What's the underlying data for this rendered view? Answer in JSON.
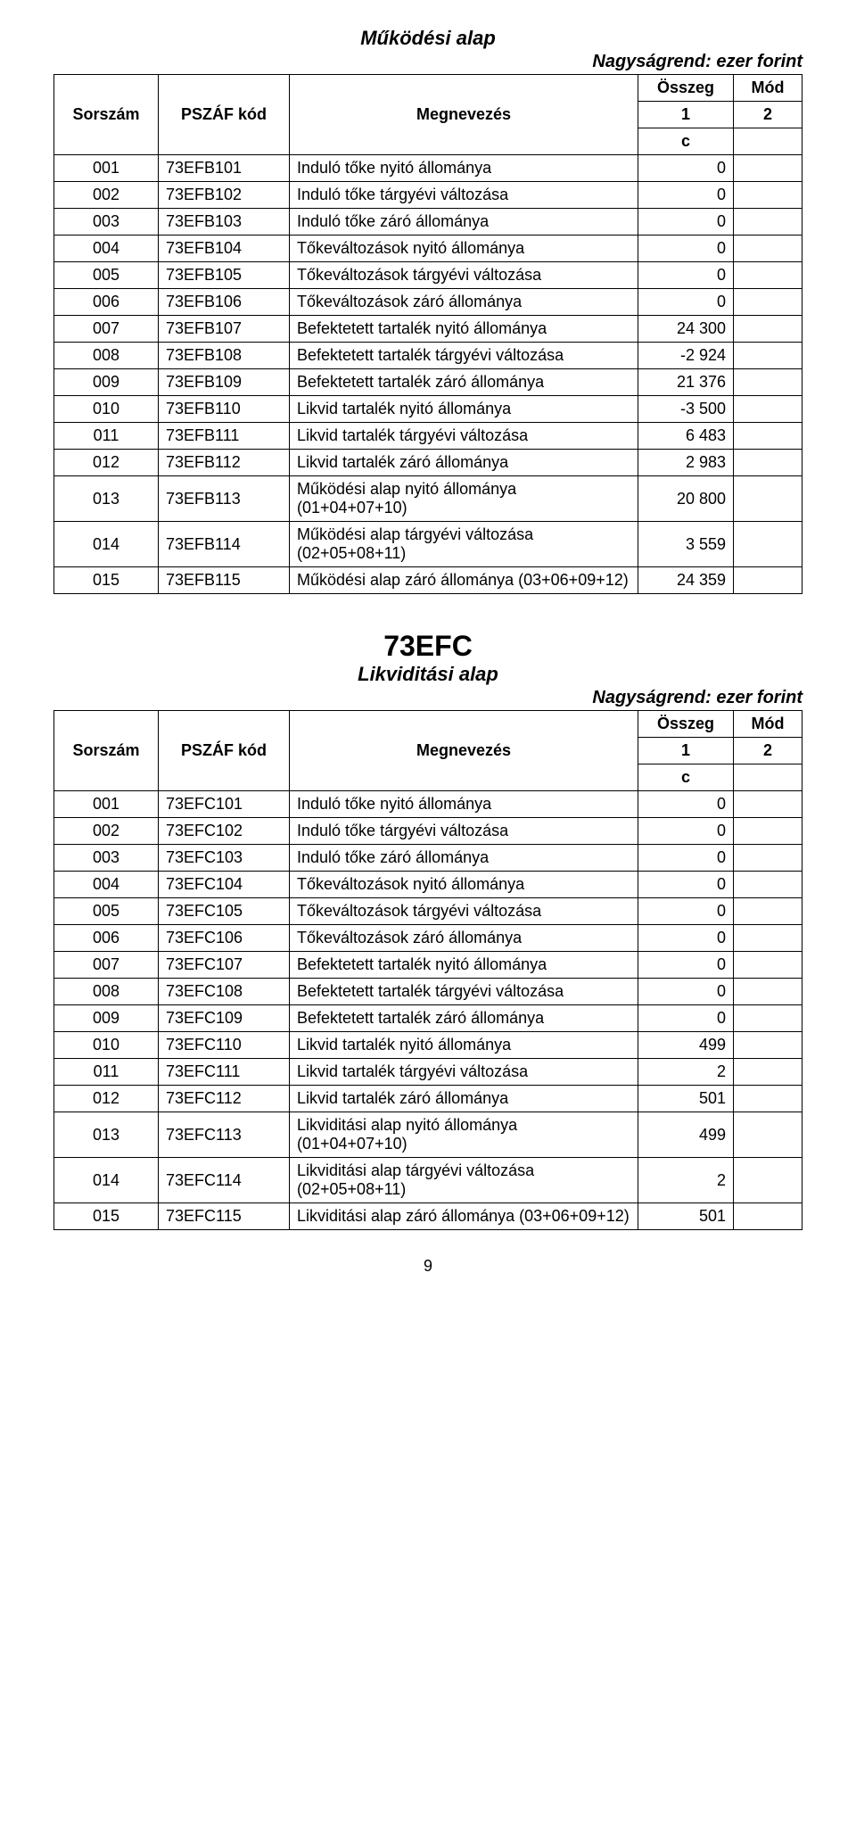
{
  "page_number": "9",
  "section1": {
    "title": "Működési alap",
    "unit": "Nagyságrend: ezer forint",
    "headers": {
      "sorszam": "Sorszám",
      "kod": "PSZÁF kód",
      "megnevezes": "Megnevezés",
      "osszeg": "Összeg",
      "mod": "Mód",
      "col1": "1",
      "col2": "2",
      "c": "c"
    },
    "rows": [
      {
        "s": "001",
        "k": "73EFB101",
        "m": "Induló tőke nyitó állománya",
        "v": "0"
      },
      {
        "s": "002",
        "k": "73EFB102",
        "m": "Induló tőke tárgyévi változása",
        "v": "0"
      },
      {
        "s": "003",
        "k": "73EFB103",
        "m": "Induló tőke záró állománya",
        "v": "0"
      },
      {
        "s": "004",
        "k": "73EFB104",
        "m": "Tőkeváltozások nyitó állománya",
        "v": "0"
      },
      {
        "s": "005",
        "k": "73EFB105",
        "m": "Tőkeváltozások tárgyévi változása",
        "v": "0"
      },
      {
        "s": "006",
        "k": "73EFB106",
        "m": "Tőkeváltozások záró állománya",
        "v": "0"
      },
      {
        "s": "007",
        "k": "73EFB107",
        "m": "Befektetett tartalék nyitó állománya",
        "v": "24 300"
      },
      {
        "s": "008",
        "k": "73EFB108",
        "m": "Befektetett tartalék tárgyévi változása",
        "v": "-2 924"
      },
      {
        "s": "009",
        "k": "73EFB109",
        "m": "Befektetett tartalék záró állománya",
        "v": "21 376"
      },
      {
        "s": "010",
        "k": "73EFB110",
        "m": "Likvid tartalék nyitó állománya",
        "v": "-3 500"
      },
      {
        "s": "011",
        "k": "73EFB111",
        "m": "Likvid tartalék tárgyévi változása",
        "v": "6 483"
      },
      {
        "s": "012",
        "k": "73EFB112",
        "m": "Likvid tartalék záró állománya",
        "v": "2 983"
      },
      {
        "s": "013",
        "k": "73EFB113",
        "m": "Működési alap nyitó állománya (01+04+07+10)",
        "v": "20 800"
      },
      {
        "s": "014",
        "k": "73EFB114",
        "m": "Működési alap tárgyévi változása (02+05+08+11)",
        "v": "3 559"
      },
      {
        "s": "015",
        "k": "73EFB115",
        "m": "Működési alap záró állománya (03+06+09+12)",
        "v": "24 359"
      }
    ]
  },
  "section2": {
    "code": "73EFC",
    "title": "Likviditási alap",
    "unit": "Nagyságrend: ezer forint",
    "headers": {
      "sorszam": "Sorszám",
      "kod": "PSZÁF kód",
      "megnevezes": "Megnevezés",
      "osszeg": "Összeg",
      "mod": "Mód",
      "col1": "1",
      "col2": "2",
      "c": "c"
    },
    "rows": [
      {
        "s": "001",
        "k": "73EFC101",
        "m": "Induló tőke nyitó állománya",
        "v": "0"
      },
      {
        "s": "002",
        "k": "73EFC102",
        "m": "Induló tőke tárgyévi változása",
        "v": "0"
      },
      {
        "s": "003",
        "k": "73EFC103",
        "m": "Induló tőke záró állománya",
        "v": "0"
      },
      {
        "s": "004",
        "k": "73EFC104",
        "m": "Tőkeváltozások nyitó állománya",
        "v": "0"
      },
      {
        "s": "005",
        "k": "73EFC105",
        "m": "Tőkeváltozások tárgyévi változása",
        "v": "0"
      },
      {
        "s": "006",
        "k": "73EFC106",
        "m": "Tőkeváltozások záró állománya",
        "v": "0"
      },
      {
        "s": "007",
        "k": "73EFC107",
        "m": "Befektetett tartalék nyitó állománya",
        "v": "0"
      },
      {
        "s": "008",
        "k": "73EFC108",
        "m": "Befektetett tartalék tárgyévi változása",
        "v": "0"
      },
      {
        "s": "009",
        "k": "73EFC109",
        "m": "Befektetett tartalék záró állománya",
        "v": "0"
      },
      {
        "s": "010",
        "k": "73EFC110",
        "m": "Likvid tartalék nyitó állománya",
        "v": "499"
      },
      {
        "s": "011",
        "k": "73EFC111",
        "m": "Likvid tartalék tárgyévi változása",
        "v": "2"
      },
      {
        "s": "012",
        "k": "73EFC112",
        "m": "Likvid tartalék záró állománya",
        "v": "501"
      },
      {
        "s": "013",
        "k": "73EFC113",
        "m": "Likviditási alap nyitó állománya (01+04+07+10)",
        "v": "499"
      },
      {
        "s": "014",
        "k": "73EFC114",
        "m": "Likviditási alap tárgyévi változása (02+05+08+11)",
        "v": "2"
      },
      {
        "s": "015",
        "k": "73EFC115",
        "m": "Likviditási alap záró állománya (03+06+09+12)",
        "v": "501"
      }
    ]
  }
}
